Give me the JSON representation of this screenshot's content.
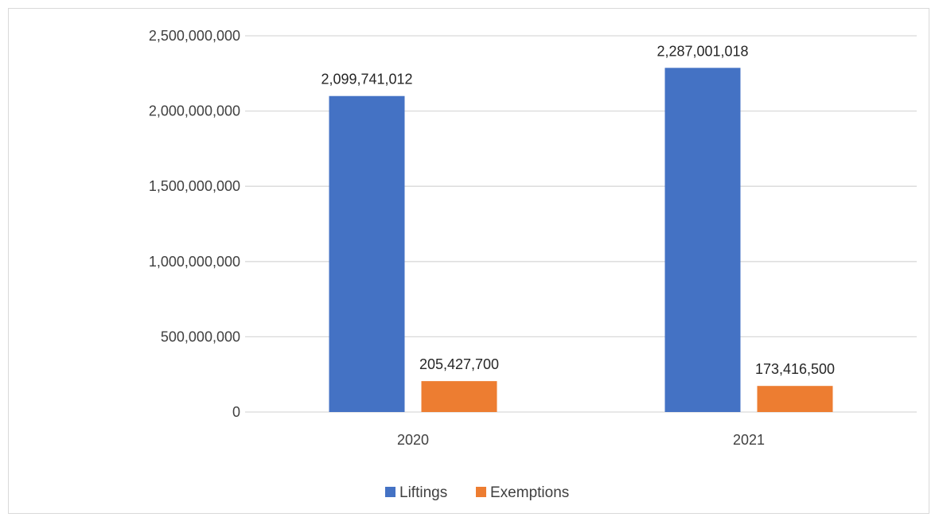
{
  "chart_data": {
    "type": "bar",
    "categories": [
      "2020",
      "2021"
    ],
    "series": [
      {
        "name": "Liftings",
        "values": [
          2099741012,
          2287001018
        ],
        "labels": [
          "2,099,741,012",
          "2,287,001,018"
        ],
        "color": "#4472c4"
      },
      {
        "name": "Exemptions",
        "values": [
          205427700,
          173416500
        ],
        "labels": [
          "205,427,700",
          "173,416,500"
        ],
        "color": "#ed7d31"
      }
    ],
    "y_ticks": [
      0,
      500000000,
      1000000000,
      1500000000,
      2000000000,
      2500000000
    ],
    "y_tick_labels": [
      "0",
      "500,000,000",
      "1,000,000,000",
      "1,500,000,000",
      "2,000,000,000",
      "2,500,000,000"
    ],
    "ylim": [
      0,
      2500000000
    ],
    "title": "",
    "xlabel": "",
    "ylabel": "",
    "grid": true,
    "gridline_color": "#d9d9d9",
    "legend_position": "bottom"
  }
}
